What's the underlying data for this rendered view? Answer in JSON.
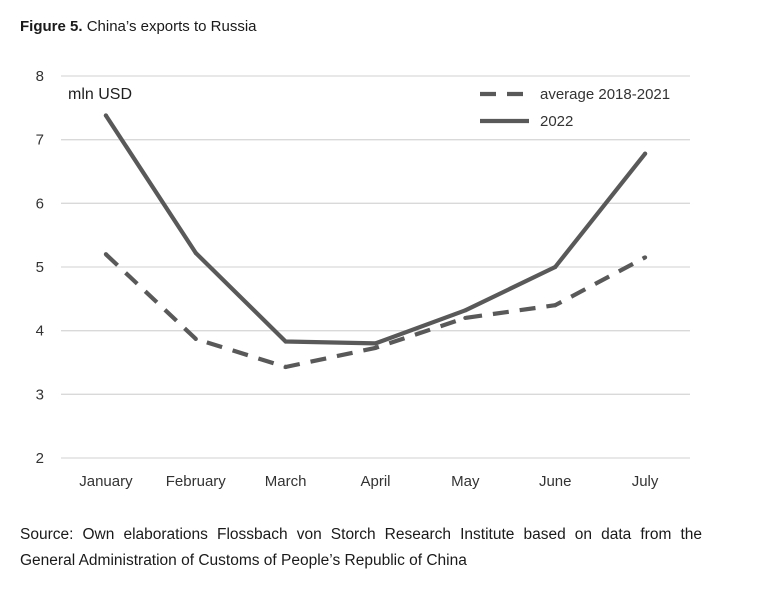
{
  "figure": {
    "label": "Figure 5.",
    "title": "China’s exports to Russia"
  },
  "source_text": "Source: Own elaborations Flossbach von Storch Research Institute based on data from the General Administration of Customs of People’s Republic of China",
  "chart_data": {
    "type": "line",
    "title": "China’s exports to Russia",
    "unit_label": "mln USD",
    "categories": [
      "January",
      "February",
      "March",
      "April",
      "May",
      "June",
      "July"
    ],
    "ylim": [
      2,
      8
    ],
    "yticks": [
      2,
      3,
      4,
      5,
      6,
      7,
      8
    ],
    "grid": true,
    "legend_position": "top-right",
    "series": [
      {
        "name": "average 2018-2021",
        "style": "dashed",
        "color": "#595959",
        "values": [
          5.2,
          3.87,
          3.43,
          3.73,
          4.2,
          4.4,
          5.15
        ]
      },
      {
        "name": "2022",
        "style": "solid",
        "color": "#595959",
        "values": [
          7.38,
          5.22,
          3.83,
          3.8,
          4.32,
          5.0,
          6.78
        ]
      }
    ]
  }
}
